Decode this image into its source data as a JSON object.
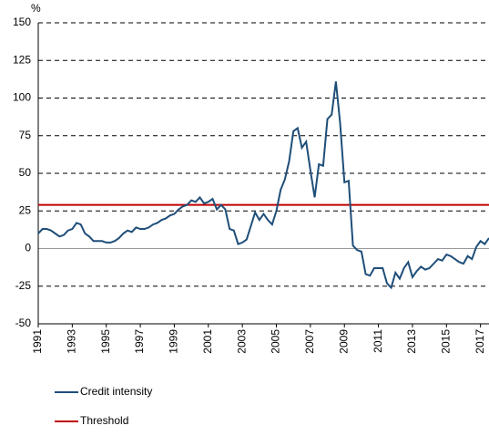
{
  "chart_data": {
    "type": "line",
    "y_label": "%",
    "x": [
      1991,
      1991.25,
      1991.5,
      1991.75,
      1992,
      1992.25,
      1992.5,
      1992.75,
      1993,
      1993.25,
      1993.5,
      1993.75,
      1994,
      1994.25,
      1994.5,
      1994.75,
      1995,
      1995.25,
      1995.5,
      1995.75,
      1996,
      1996.25,
      1996.5,
      1996.75,
      1997,
      1997.25,
      1997.5,
      1997.75,
      1998,
      1998.25,
      1998.5,
      1998.75,
      1999,
      1999.25,
      1999.5,
      1999.75,
      2000,
      2000.25,
      2000.5,
      2000.75,
      2001,
      2001.25,
      2001.5,
      2001.75,
      2002,
      2002.25,
      2002.5,
      2002.75,
      2003,
      2003.25,
      2003.5,
      2003.75,
      2004,
      2004.25,
      2004.5,
      2004.75,
      2005,
      2005.25,
      2005.5,
      2005.75,
      2006,
      2006.25,
      2006.5,
      2006.75,
      2007,
      2007.25,
      2007.5,
      2007.75,
      2008,
      2008.25,
      2008.5,
      2008.75,
      2009,
      2009.25,
      2009.5,
      2009.75,
      2010,
      2010.25,
      2010.5,
      2010.75,
      2011,
      2011.25,
      2011.5,
      2011.75,
      2012,
      2012.25,
      2012.5,
      2012.75,
      2013,
      2013.25,
      2013.5,
      2013.75,
      2014,
      2014.25,
      2014.5,
      2014.75,
      2015,
      2015.25,
      2015.5,
      2015.75,
      2016,
      2016.25,
      2016.5,
      2016.75,
      2017,
      2017.25,
      2017.5
    ],
    "series": [
      {
        "name": "Credit intensity",
        "color": "#1f4e79",
        "values": [
          10,
          13,
          13,
          12,
          10,
          8,
          9,
          12,
          13,
          17,
          16,
          10,
          8,
          5,
          5,
          5,
          4,
          4,
          5,
          7,
          10,
          12,
          11,
          14,
          13,
          13,
          14,
          16,
          17,
          19,
          20,
          22,
          23,
          26,
          28,
          29,
          32,
          31,
          34,
          30,
          31,
          33,
          26,
          29,
          26,
          13,
          12,
          3,
          4,
          6,
          15,
          24,
          19,
          23,
          19,
          16,
          25,
          39,
          46,
          58,
          78,
          80,
          67,
          71,
          52,
          34,
          56,
          55,
          86,
          89,
          111,
          83,
          44,
          45,
          2,
          -1,
          -2,
          -17,
          -18,
          -13,
          -13,
          -13,
          -23,
          -26,
          -16,
          -20,
          -13,
          -9,
          -19,
          -15,
          -12,
          -14,
          -13,
          -10,
          -7,
          -8,
          -4,
          -5,
          -7,
          -9,
          -10,
          -5,
          -7,
          1,
          5,
          3,
          7
        ]
      }
    ],
    "threshold": {
      "name": "Threshold",
      "value": 29,
      "color": "#c00000"
    },
    "xlim": [
      1991,
      2017.5
    ],
    "xticks": [
      1991,
      1993,
      1995,
      1997,
      1999,
      2001,
      2003,
      2005,
      2007,
      2009,
      2011,
      2013,
      2015,
      2017
    ],
    "ylim": [
      -50,
      150
    ],
    "yticks": [
      -50,
      -25,
      0,
      25,
      50,
      75,
      100,
      125,
      150
    ],
    "grid": true
  }
}
